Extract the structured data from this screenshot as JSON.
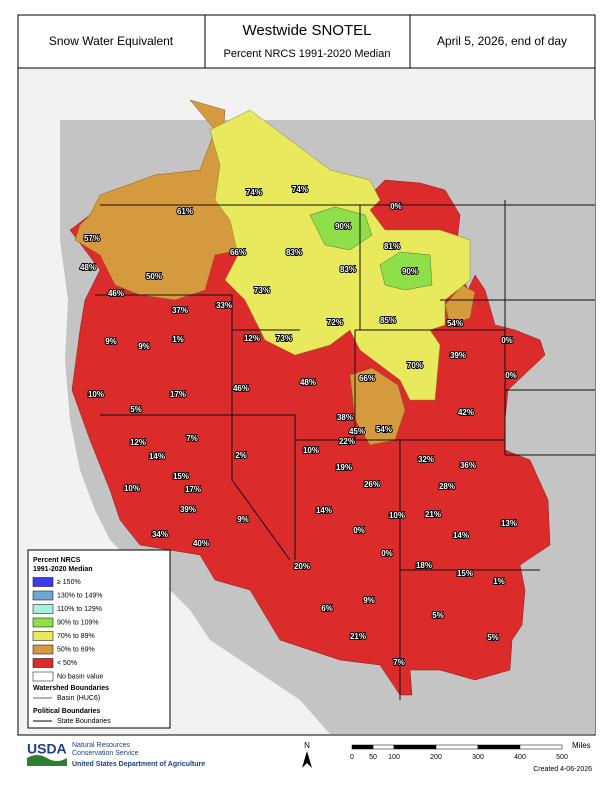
{
  "header": {
    "left": "Snow Water Equivalent",
    "title": "Westwide SNOTEL",
    "subtitle": "Percent NRCS 1991-2020 Median",
    "date": "April 5, 2026, end of day"
  },
  "map": {
    "labels": [
      "61%",
      "74%",
      "74%",
      "0%",
      "90%",
      "57%",
      "66%",
      "83%",
      "81%",
      "83%",
      "90%",
      "48%",
      "50%",
      "73%",
      "46%",
      "33%",
      "37%",
      "72%",
      "85%",
      "54%",
      "9%",
      "9%",
      "1%",
      "12%",
      "73%",
      "0%",
      "39%",
      "70%",
      "66%",
      "0%",
      "10%",
      "17%",
      "46%",
      "48%",
      "5%",
      "42%",
      "38%",
      "45%",
      "54%",
      "22%",
      "7%",
      "12%",
      "14%",
      "2%",
      "10%",
      "32%",
      "36%",
      "19%",
      "15%",
      "17%",
      "26%",
      "28%",
      "10%",
      "39%",
      "9%",
      "14%",
      "10%",
      "21%",
      "13%",
      "0%",
      "14%",
      "34%",
      "40%",
      "0%",
      "20%",
      "18%",
      "15%",
      "1%",
      "9%",
      "6%",
      "5%",
      "21%",
      "5%",
      "7%"
    ]
  },
  "legend": {
    "title": [
      "Percent NRCS",
      "1991-2020 Median"
    ],
    "items": [
      {
        "label": "≥ 150%",
        "color": "#3b3bf0"
      },
      {
        "label": "130% to 149%",
        "color": "#6fa8d8"
      },
      {
        "label": "110% to 129%",
        "color": "#a8f0e0"
      },
      {
        "label": "90% to 109%",
        "color": "#8fdf4a"
      },
      {
        "label": "70% to 89%",
        "color": "#e9e95e"
      },
      {
        "label": "50% to 69%",
        "color": "#d69a3e"
      },
      {
        "label": "< 50%",
        "color": "#dc2b2b"
      },
      {
        "label": "No basin value",
        "color": "#ffffff"
      }
    ],
    "watershed_heading": "Watershed Boundaries",
    "watershed_item": "Basin (HUC6)",
    "political_heading": "Political Boundaries",
    "political_item": "State Boundaries"
  },
  "footer": {
    "logo": "USDA",
    "agency": [
      "Natural Resources",
      "Conservation Service"
    ],
    "department": "United States Department of Agriculture",
    "north": "N",
    "scale_ticks": [
      0,
      50,
      100,
      200,
      300,
      400,
      500
    ],
    "scale_unit": "Miles",
    "created": "Created 4-06-2026"
  }
}
